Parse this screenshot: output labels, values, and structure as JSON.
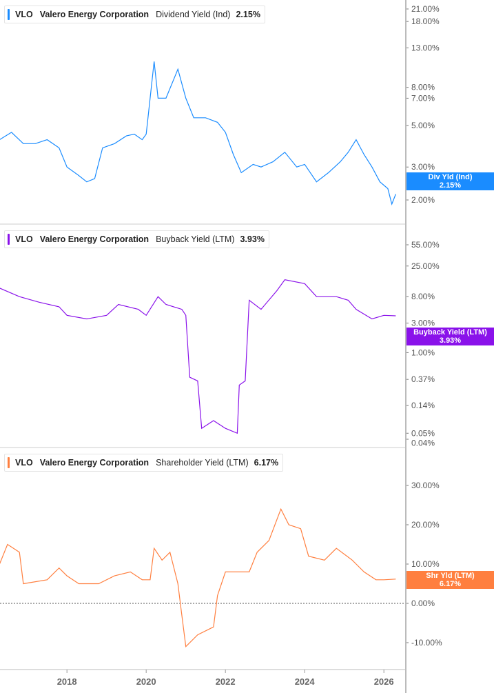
{
  "ticker": "VLO",
  "company": "Valero Energy Corporation",
  "x_ticks": [
    "2018",
    "2020",
    "2022",
    "2024",
    "2026"
  ],
  "chart_data": [
    {
      "type": "line",
      "scale": "log",
      "color": "#1a8cff",
      "legend": {
        "metric": "Dividend Yield (Ind)",
        "value": "2.15%"
      },
      "flag": {
        "label": "Div Yld (Ind)",
        "value": "2.15%"
      },
      "y_ticks": [
        "21.00%",
        "18.00%",
        "13.00%",
        "8.00%",
        "7.00%",
        "5.00%",
        "3.00%",
        "2.00%"
      ],
      "y_tick_values": [
        21,
        18,
        13,
        8,
        7,
        5,
        3,
        2
      ],
      "x": [
        2016.3,
        2016.6,
        2016.9,
        2017.2,
        2017.5,
        2017.8,
        2018.0,
        2018.3,
        2018.5,
        2018.7,
        2018.9,
        2019.2,
        2019.5,
        2019.7,
        2019.9,
        2020.0,
        2020.2,
        2020.3,
        2020.5,
        2020.8,
        2021.0,
        2021.2,
        2021.5,
        2021.8,
        2022.0,
        2022.2,
        2022.4,
        2022.7,
        2022.9,
        2023.2,
        2023.5,
        2023.8,
        2024.0,
        2024.3,
        2024.6,
        2024.9,
        2025.1,
        2025.3,
        2025.5,
        2025.7,
        2025.9,
        2026.1,
        2026.2,
        2026.3
      ],
      "y": [
        4.2,
        4.6,
        4.0,
        4.0,
        4.2,
        3.8,
        3.0,
        2.7,
        2.5,
        2.6,
        3.8,
        4.0,
        4.4,
        4.5,
        4.2,
        4.5,
        11,
        7,
        7,
        10,
        7,
        5.5,
        5.5,
        5.2,
        4.6,
        3.5,
        2.8,
        3.1,
        3.0,
        3.2,
        3.6,
        3.0,
        3.1,
        2.5,
        2.8,
        3.2,
        3.6,
        4.2,
        3.5,
        3.0,
        2.5,
        2.3,
        1.9,
        2.15
      ]
    },
    {
      "type": "line",
      "scale": "log",
      "color": "#8a12ea",
      "legend": {
        "metric": "Buyback Yield (LTM)",
        "value": "3.93%"
      },
      "flag": {
        "label": "Buyback Yield (LTM)",
        "value": "3.93%"
      },
      "y_ticks": [
        "55.00%",
        "25.00%",
        "8.00%",
        "3.00%",
        "1.00%",
        "0.37%",
        "0.14%",
        "0.05%",
        "0.04%"
      ],
      "y_tick_values": [
        55,
        25,
        8,
        3,
        1,
        0.37,
        0.14,
        0.05,
        0.04
      ],
      "x": [
        2016.3,
        2016.8,
        2017.3,
        2017.8,
        2018.0,
        2018.5,
        2019.0,
        2019.3,
        2019.8,
        2020.0,
        2020.3,
        2020.5,
        2020.9,
        2021.0,
        2021.1,
        2021.3,
        2021.4,
        2021.7,
        2022.0,
        2022.3,
        2022.35,
        2022.5,
        2022.6,
        2022.9,
        2023.3,
        2023.5,
        2024.0,
        2024.3,
        2024.8,
        2025.1,
        2025.3,
        2025.7,
        2026.0,
        2026.3
      ],
      "y": [
        11,
        8,
        6.5,
        5.5,
        4,
        3.5,
        4,
        6,
        5,
        4,
        8,
        6,
        5,
        4,
        0.4,
        0.35,
        0.06,
        0.08,
        0.06,
        0.05,
        0.3,
        0.35,
        7,
        5,
        10,
        15,
        13,
        8,
        8,
        7,
        5,
        3.5,
        4,
        3.93
      ]
    },
    {
      "type": "line",
      "scale": "linear",
      "color": "#ff7f3f",
      "legend": {
        "metric": "Shareholder Yield (LTM)",
        "value": "6.17%"
      },
      "flag": {
        "label": "Shr Yld (LTM)",
        "value": "6.17%"
      },
      "y_ticks": [
        "30.00%",
        "20.00%",
        "10.00%",
        "0.00%",
        "-10.00%"
      ],
      "y_tick_values": [
        30,
        20,
        10,
        0,
        -10
      ],
      "zero_line": true,
      "x": [
        2016.3,
        2016.5,
        2016.8,
        2016.9,
        2017.5,
        2017.8,
        2018.0,
        2018.3,
        2018.8,
        2019.2,
        2019.6,
        2019.9,
        2020.1,
        2020.2,
        2020.4,
        2020.6,
        2020.8,
        2020.9,
        2021.0,
        2021.3,
        2021.7,
        2021.8,
        2022.0,
        2022.3,
        2022.6,
        2022.8,
        2023.1,
        2023.4,
        2023.6,
        2023.9,
        2024.1,
        2024.5,
        2024.8,
        2025.2,
        2025.3,
        2025.5,
        2025.8,
        2026.0,
        2026.3
      ],
      "y": [
        10,
        15,
        13,
        5,
        6,
        9,
        7,
        5,
        5,
        7,
        8,
        6,
        6,
        14,
        11,
        13,
        5,
        -3,
        -11,
        -8,
        -6,
        2,
        8,
        8,
        8,
        13,
        16,
        24,
        20,
        19,
        12,
        11,
        14,
        11,
        10,
        8,
        6,
        6,
        6.17
      ]
    }
  ]
}
